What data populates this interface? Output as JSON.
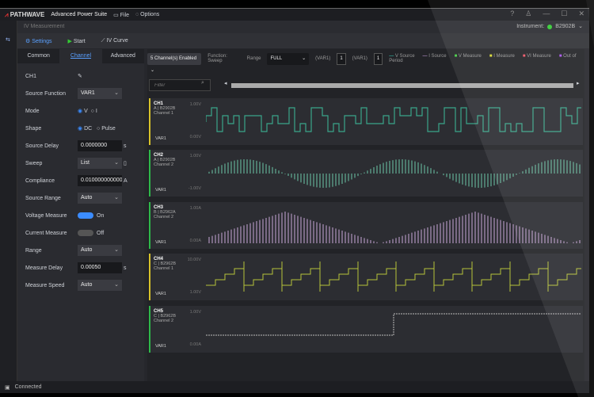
{
  "app": {
    "brand": "PATHWAVE",
    "title": "Advanced Power Suite",
    "menu": [
      "File",
      "Options"
    ],
    "window_controls": [
      "?",
      "user",
      "minimize",
      "maximize",
      "close"
    ]
  },
  "subheader": {
    "title": "IV Measurement",
    "instrument_label": "Instrument:",
    "instrument": "B2902B"
  },
  "toolbar": {
    "settings": "Settings",
    "start": "Start",
    "iv_curve": "IV Curve"
  },
  "tabs": [
    "Common",
    "Channel",
    "Advanced"
  ],
  "channel_panel": {
    "name": "CH1",
    "source_function": {
      "label": "Source Function",
      "value": "VAR1"
    },
    "mode": {
      "label": "Mode",
      "options": [
        "V",
        "I"
      ],
      "selected": "V"
    },
    "shape": {
      "label": "Shape",
      "options": [
        "DC",
        "Pulse"
      ],
      "selected": "DC"
    },
    "source_delay": {
      "label": "Source Delay",
      "value": "0.0000000",
      "unit": "s"
    },
    "sweep": {
      "label": "Sweep",
      "value": "List"
    },
    "compliance": {
      "label": "Compliance",
      "value": "0.0100000000000",
      "unit": "A"
    },
    "source_range": {
      "label": "Source Range",
      "value": "Auto"
    },
    "voltage_measure": {
      "label": "Voltage Measure",
      "state": "On"
    },
    "current_measure": {
      "label": "Current Measure",
      "state": "Off"
    },
    "range": {
      "label": "Range",
      "value": "Auto"
    },
    "measure_delay": {
      "label": "Measure Delay",
      "value": "0.00050",
      "unit": "s"
    },
    "measure_speed": {
      "label": "Measure Speed",
      "value": "Auto"
    }
  },
  "plot_toolbar": {
    "channels_enabled": "5 Channel(s) Enabled",
    "function": "Function: Sweep",
    "range_label": "Range",
    "range": "FULL",
    "var1_label": "(VAR1)",
    "var1": "1",
    "var1b_label": "(VAR1)",
    "var1b": "1",
    "filter_placeholder": "Filter",
    "legend": [
      {
        "label": "V Source",
        "color": "#3a9"
      },
      {
        "label": "I Source",
        "color": "#a8b"
      },
      {
        "label": "V Measure",
        "color": "#4c4"
      },
      {
        "label": "I Measure",
        "color": "#dd3"
      },
      {
        "label": "VI Measure",
        "color": "#e56"
      },
      {
        "label": "Out of Period",
        "color": "#a5e"
      }
    ]
  },
  "channels": [
    {
      "name": "CH1",
      "unit": "A | B2902B",
      "sub": "Channel 1",
      "max": "1.00V",
      "min": "0.00V",
      "var": "VAR1",
      "color": "#d8c22a",
      "wave": "#3aa58a"
    },
    {
      "name": "CH2",
      "unit": "A | B2902B",
      "sub": "Channel 2",
      "max": "1.00V",
      "min": "-1.00V",
      "var": "VAR1",
      "color": "#2fb84a",
      "wave": "#6cc7a8"
    },
    {
      "name": "CH3",
      "unit": "B | B2962A",
      "sub": "Channel 2",
      "max": "1.00A",
      "min": "0.00A",
      "var": "VAR1",
      "color": "#2fb84a",
      "wave": "#c9a6d8"
    },
    {
      "name": "CH4",
      "unit": "C | B2962B",
      "sub": "Channel 1",
      "max": "10.00V",
      "min": "1.00V",
      "var": "VAR1",
      "color": "#d8c22a",
      "wave": "#b6c43a"
    },
    {
      "name": "CH5",
      "unit": "C | B2962B",
      "sub": "Channel 2",
      "max": "1.00V",
      "min": "0.00A",
      "var": "VAR1",
      "color": "#2fb84a",
      "wave": "#bbbbbb"
    }
  ],
  "status": {
    "text": "Connected"
  }
}
